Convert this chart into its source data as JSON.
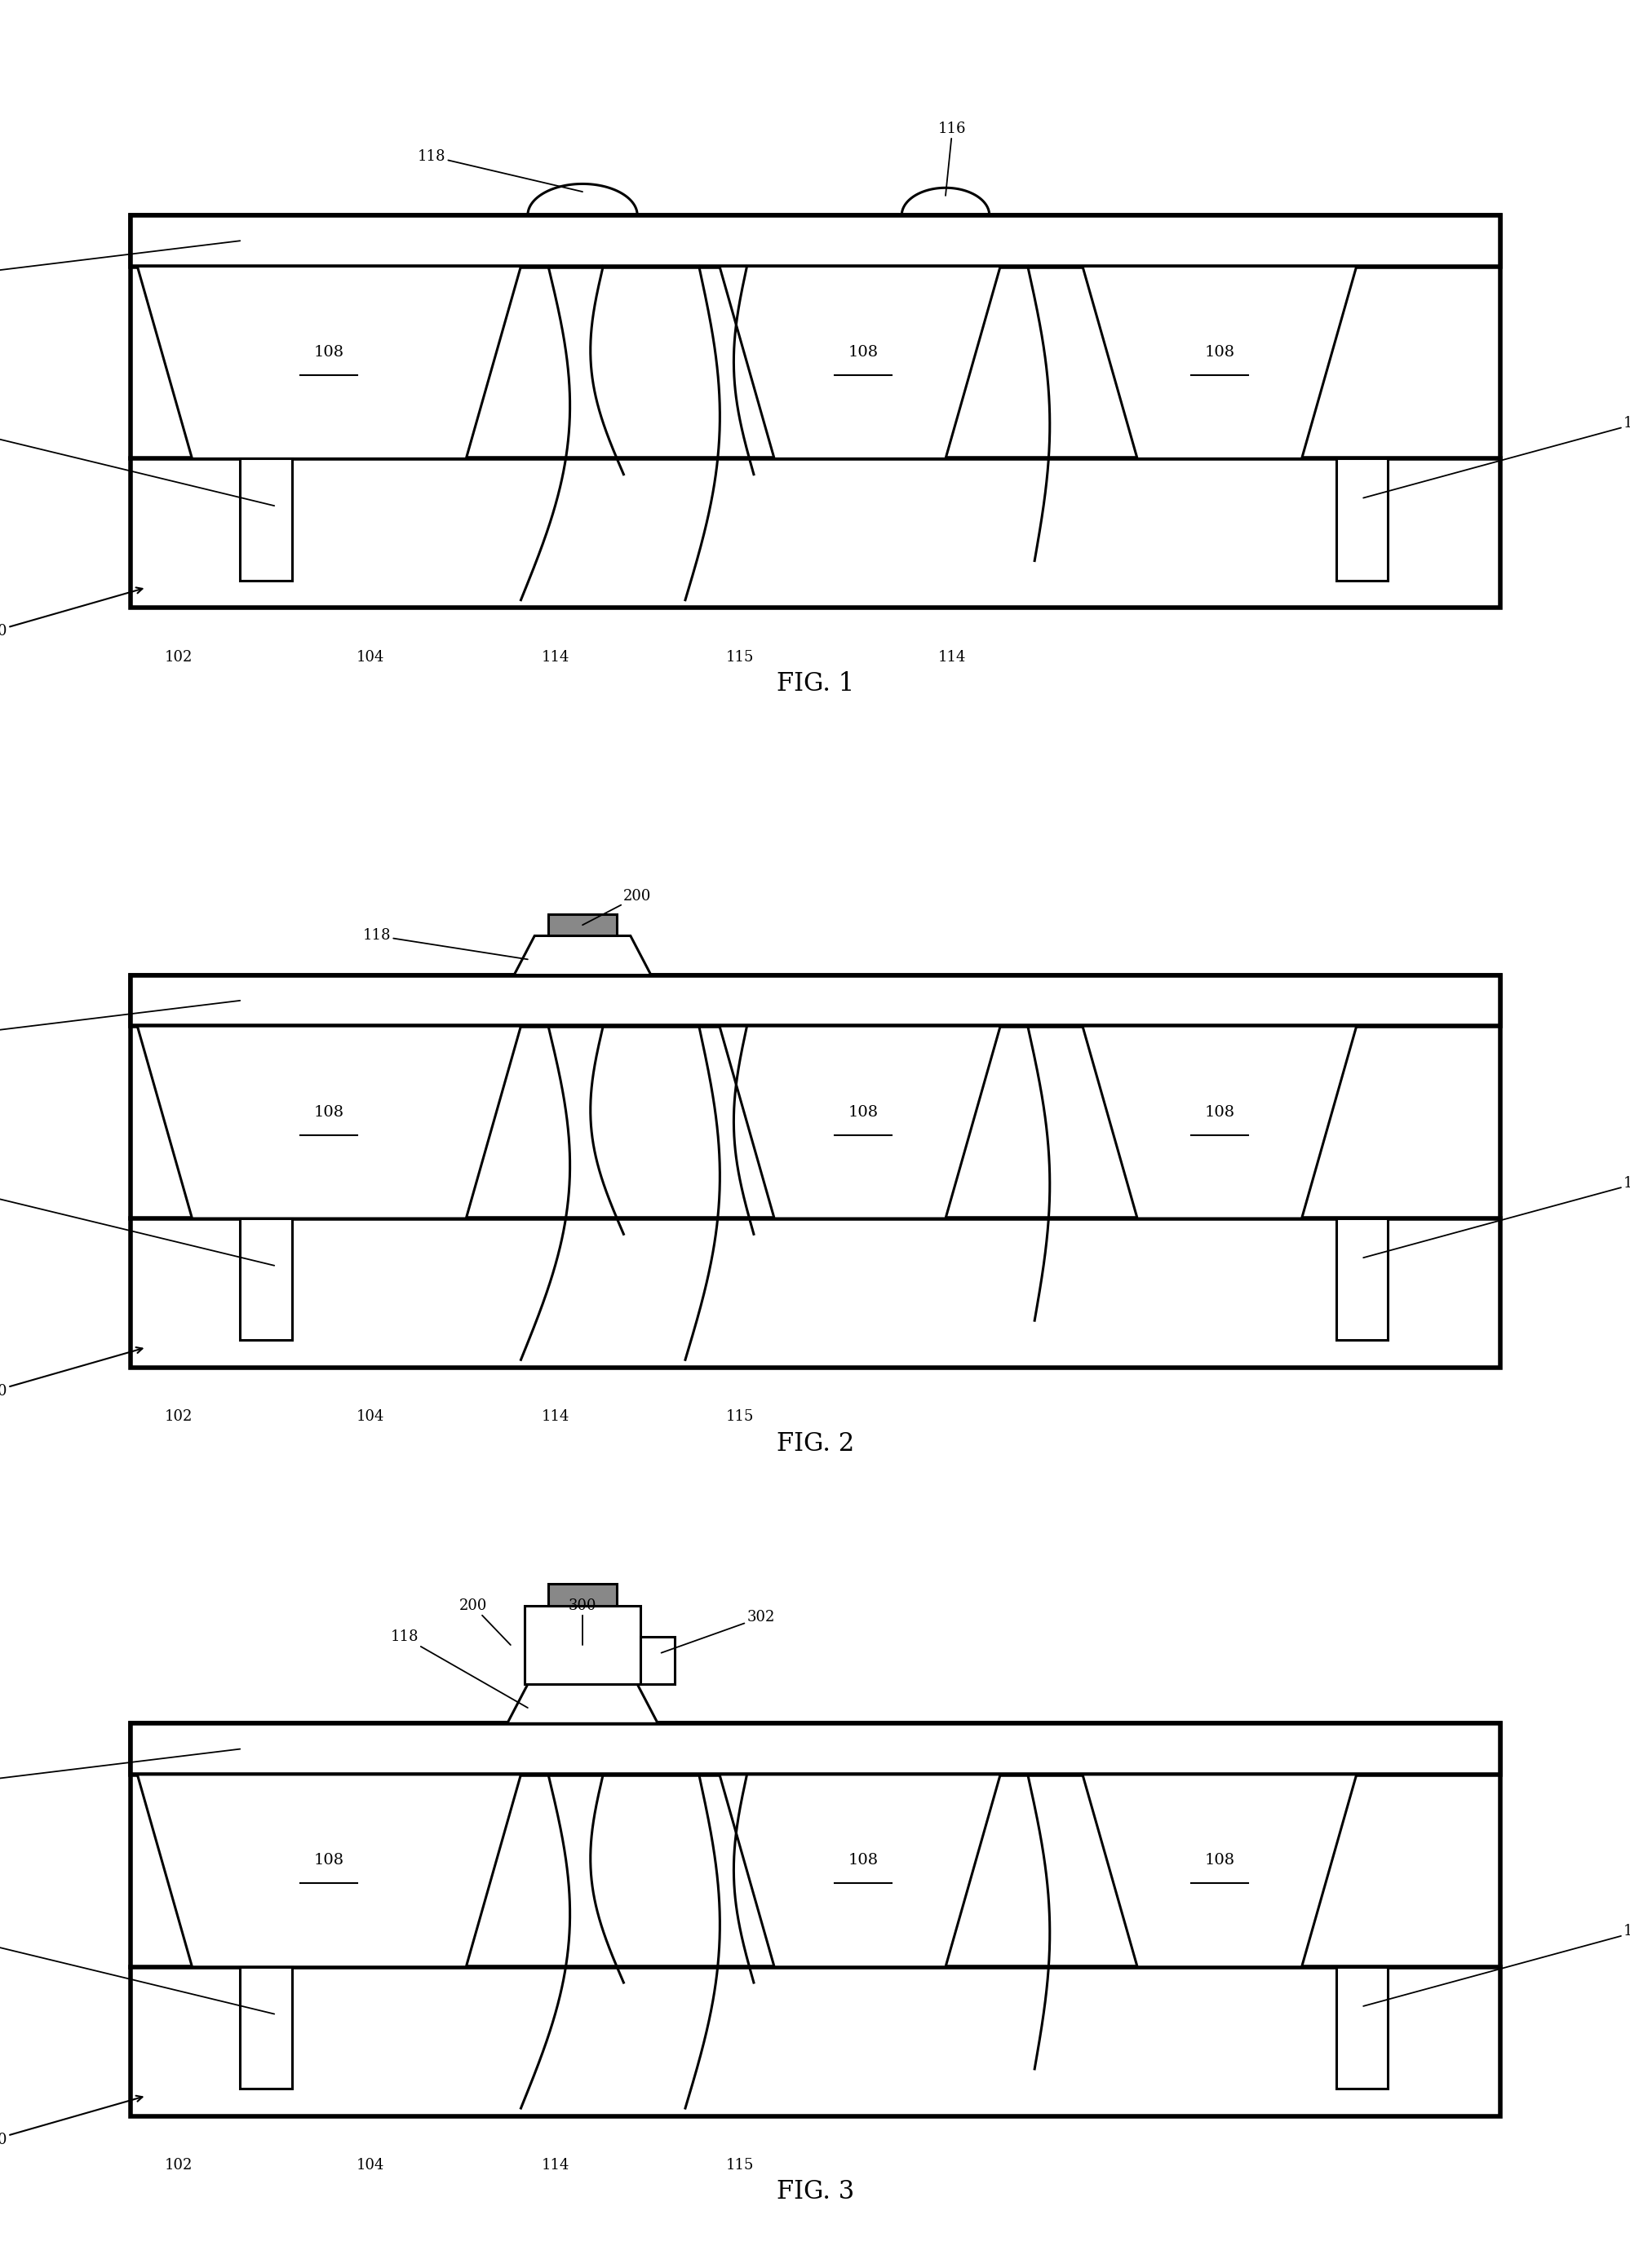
{
  "fig1_title": "FIG. 1",
  "fig2_title": "FIG. 2",
  "fig3_title": "FIG. 3",
  "bg_color": "#ffffff",
  "lc": "#000000",
  "lw": 2.2,
  "lw_thick": 4.0,
  "lw_medium": 3.0,
  "fontsize_label": 14,
  "fontsize_ref": 13,
  "fontsize_title": 22
}
